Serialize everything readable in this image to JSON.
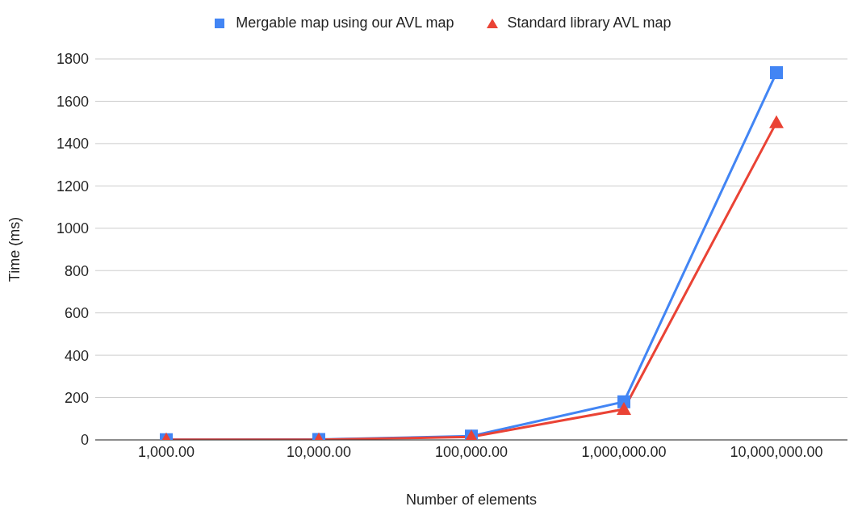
{
  "chart_data": {
    "type": "line",
    "xlabel": "Number of elements",
    "ylabel": "Time (ms)",
    "categories": [
      "1,000.00",
      "10,000.00",
      "100,000.00",
      "1,000,000.00",
      "10,000,000.00"
    ],
    "series": [
      {
        "name": "Mergable map using our AVL map",
        "color": "#4285f4",
        "marker": "square",
        "values": [
          1,
          2,
          18,
          180,
          1735
        ]
      },
      {
        "name": "Standard library AVL map",
        "color": "#ea4335",
        "marker": "triangle",
        "values": [
          1,
          1,
          14,
          145,
          1500
        ]
      }
    ],
    "ylim": [
      0,
      1800
    ],
    "yticks": [
      0,
      200,
      400,
      600,
      800,
      1000,
      1200,
      1400,
      1600,
      1800
    ],
    "grid": "y",
    "legend": "top"
  }
}
